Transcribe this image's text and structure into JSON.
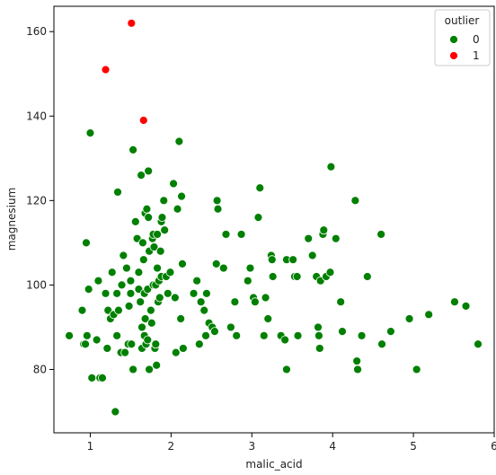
{
  "chart_data": {
    "type": "scatter",
    "xlabel": "malic_acid",
    "ylabel": "magnesium",
    "xlim": [
      0.55,
      6.0
    ],
    "ylim": [
      65,
      166
    ],
    "xticks": [
      1,
      2,
      3,
      4,
      5,
      6
    ],
    "yticks": [
      80,
      100,
      120,
      140,
      160
    ],
    "grid": false,
    "legend": {
      "title": "outlier",
      "placement": "top-right"
    },
    "series": [
      {
        "name": "0",
        "color": "#008000",
        "points": [
          [
            0.74,
            88
          ],
          [
            0.9,
            94
          ],
          [
            0.92,
            86
          ],
          [
            0.94,
            86
          ],
          [
            0.96,
            88
          ],
          [
            0.95,
            110
          ],
          [
            0.98,
            99
          ],
          [
            1.0,
            136
          ],
          [
            1.02,
            78
          ],
          [
            1.08,
            87
          ],
          [
            1.1,
            101
          ],
          [
            1.12,
            78
          ],
          [
            1.15,
            78
          ],
          [
            1.19,
            98
          ],
          [
            1.21,
            85
          ],
          [
            1.22,
            94
          ],
          [
            1.25,
            92
          ],
          [
            1.27,
            103
          ],
          [
            1.29,
            93
          ],
          [
            1.31,
            70
          ],
          [
            1.33,
            88
          ],
          [
            1.33,
            98
          ],
          [
            1.34,
            122
          ],
          [
            1.35,
            94
          ],
          [
            1.38,
            84
          ],
          [
            1.39,
            100
          ],
          [
            1.41,
            107
          ],
          [
            1.43,
            84
          ],
          [
            1.45,
            104
          ],
          [
            1.47,
            86
          ],
          [
            1.48,
            95
          ],
          [
            1.5,
            98
          ],
          [
            1.5,
            101
          ],
          [
            1.51,
            86
          ],
          [
            1.53,
            132
          ],
          [
            1.53,
            80
          ],
          [
            1.56,
            115
          ],
          [
            1.58,
            111
          ],
          [
            1.6,
            99
          ],
          [
            1.6,
            103
          ],
          [
            1.62,
            96
          ],
          [
            1.63,
            126
          ],
          [
            1.64,
            90
          ],
          [
            1.64,
            85
          ],
          [
            1.65,
            110
          ],
          [
            1.66,
            106
          ],
          [
            1.67,
            88
          ],
          [
            1.67,
            98
          ],
          [
            1.68,
            117
          ],
          [
            1.68,
            92
          ],
          [
            1.69,
            86
          ],
          [
            1.7,
            118
          ],
          [
            1.71,
            87
          ],
          [
            1.71,
            99
          ],
          [
            1.72,
            116
          ],
          [
            1.72,
            127
          ],
          [
            1.73,
            80
          ],
          [
            1.73,
            108
          ],
          [
            1.75,
            94
          ],
          [
            1.76,
            91
          ],
          [
            1.77,
            111
          ],
          [
            1.78,
            112
          ],
          [
            1.78,
            100
          ],
          [
            1.79,
            109
          ],
          [
            1.8,
            85
          ],
          [
            1.81,
            100
          ],
          [
            1.81,
            86
          ],
          [
            1.82,
            81
          ],
          [
            1.83,
            112
          ],
          [
            1.83,
            104
          ],
          [
            1.84,
            96
          ],
          [
            1.85,
            101
          ],
          [
            1.86,
            97
          ],
          [
            1.87,
            108
          ],
          [
            1.88,
            102
          ],
          [
            1.88,
            115
          ],
          [
            1.89,
            116
          ],
          [
            1.91,
            120
          ],
          [
            1.92,
            113
          ],
          [
            1.94,
            102
          ],
          [
            1.96,
            98
          ],
          [
            1.99,
            103
          ],
          [
            2.03,
            124
          ],
          [
            2.05,
            97
          ],
          [
            2.06,
            84
          ],
          [
            2.08,
            118
          ],
          [
            2.1,
            134
          ],
          [
            2.12,
            92
          ],
          [
            2.13,
            121
          ],
          [
            2.15,
            85
          ],
          [
            2.14,
            105
          ],
          [
            2.28,
            98
          ],
          [
            2.32,
            101
          ],
          [
            2.35,
            86
          ],
          [
            2.37,
            96
          ],
          [
            2.41,
            94
          ],
          [
            2.43,
            88
          ],
          [
            2.44,
            98
          ],
          [
            2.47,
            91
          ],
          [
            2.51,
            90
          ],
          [
            2.54,
            89
          ],
          [
            2.56,
            105
          ],
          [
            2.57,
            120
          ],
          [
            2.58,
            118
          ],
          [
            2.65,
            104
          ],
          [
            2.68,
            112
          ],
          [
            2.74,
            90
          ],
          [
            2.79,
            96
          ],
          [
            2.81,
            88
          ],
          [
            2.87,
            112
          ],
          [
            2.95,
            101
          ],
          [
            2.98,
            104
          ],
          [
            3.02,
            97
          ],
          [
            3.04,
            96
          ],
          [
            3.08,
            116
          ],
          [
            3.1,
            123
          ],
          [
            3.15,
            88
          ],
          [
            3.17,
            97
          ],
          [
            3.2,
            92
          ],
          [
            3.24,
            107
          ],
          [
            3.25,
            106
          ],
          [
            3.26,
            102
          ],
          [
            3.36,
            88
          ],
          [
            3.41,
            87
          ],
          [
            3.43,
            80
          ],
          [
            3.43,
            106
          ],
          [
            3.51,
            106
          ],
          [
            3.53,
            102
          ],
          [
            3.56,
            102
          ],
          [
            3.57,
            88
          ],
          [
            3.7,
            111
          ],
          [
            3.75,
            107
          ],
          [
            3.8,
            102
          ],
          [
            3.82,
            90
          ],
          [
            3.83,
            88
          ],
          [
            3.84,
            85
          ],
          [
            3.85,
            101
          ],
          [
            3.88,
            112
          ],
          [
            3.89,
            113
          ],
          [
            3.92,
            102
          ],
          [
            3.97,
            103
          ],
          [
            3.98,
            128
          ],
          [
            4.04,
            111
          ],
          [
            4.1,
            96
          ],
          [
            4.12,
            89
          ],
          [
            4.28,
            120
          ],
          [
            4.3,
            82
          ],
          [
            4.31,
            80
          ],
          [
            4.36,
            88
          ],
          [
            4.43,
            102
          ],
          [
            4.6,
            112
          ],
          [
            4.61,
            86
          ],
          [
            4.72,
            89
          ],
          [
            4.95,
            92
          ],
          [
            5.04,
            80
          ],
          [
            5.19,
            93
          ],
          [
            5.51,
            96
          ],
          [
            5.65,
            95
          ],
          [
            5.8,
            86
          ]
        ]
      },
      {
        "name": "1",
        "color": "#ff0000",
        "points": [
          [
            1.19,
            151
          ],
          [
            1.51,
            162
          ],
          [
            1.66,
            139
          ]
        ]
      }
    ]
  }
}
